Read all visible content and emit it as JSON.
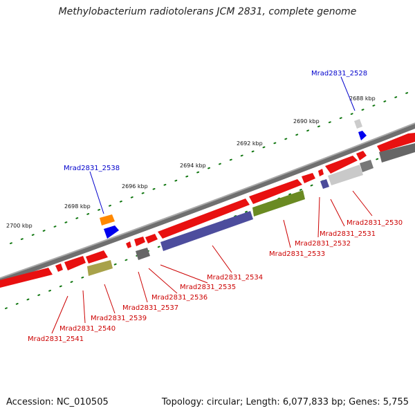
{
  "title": "Methylobacterium radiotolerans JCM 2831, complete genome",
  "footer": {
    "accession": "Accession: NC_010505",
    "topology": "Topology: circular; Length: 6,077,833 bp; Genes: 5,755"
  },
  "ticks": [
    {
      "label": "2688 kbp",
      "data_label": "2688 kbp"
    },
    {
      "label": "2690 kbp"
    },
    {
      "label": "2692 kbp"
    },
    {
      "label": "2694 kbp"
    },
    {
      "label": "2696 kbp"
    },
    {
      "label": "2698 kbp"
    },
    {
      "label": "2700 kbp"
    }
  ],
  "gene_labels_top": [
    {
      "name": "Mrad2831_2528",
      "color": "#0000cc"
    },
    {
      "name": "Mrad2831_2538",
      "color": "#0000cc"
    }
  ],
  "gene_labels_bottom": [
    {
      "name": "Mrad2831_2530"
    },
    {
      "name": "Mrad2831_2531"
    },
    {
      "name": "Mrad2831_2532"
    },
    {
      "name": "Mrad2831_2533"
    },
    {
      "name": "Mrad2831_2534"
    },
    {
      "name": "Mrad2831_2535"
    },
    {
      "name": "Mrad2831_2536"
    },
    {
      "name": "Mrad2831_2537"
    },
    {
      "name": "Mrad2831_2539"
    },
    {
      "name": "Mrad2831_2540"
    },
    {
      "name": "Mrad2831_2541"
    }
  ],
  "colors": {
    "cds": "#ee1111",
    "backbone": "#888888",
    "tick": "#117711",
    "label_red": "#cc0000",
    "label_blue": "#0000cc"
  }
}
